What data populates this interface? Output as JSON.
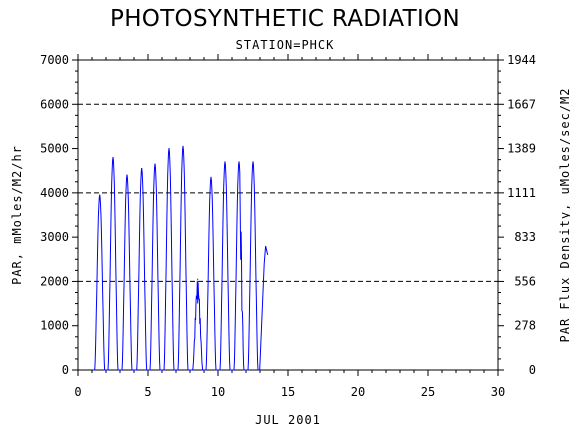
{
  "header": {
    "title": "PHOTOSYNTHETIC RADIATION",
    "subtitle": "STATION=PHCK"
  },
  "chart_data": {
    "type": "line",
    "title": "PHOTOSYNTHETIC RADIATION",
    "subtitle": "STATION=PHCK",
    "xlabel": "JUL 2001",
    "ylabel": "PAR, mMoles/M2/hr",
    "y2label": "PAR Flux Density, uMoles/sec/M2",
    "xlim": [
      0,
      30
    ],
    "ylim": [
      0,
      7000
    ],
    "y2lim": [
      0,
      1944
    ],
    "x_ticks": [
      "0",
      "5",
      "10",
      "15",
      "20",
      "25",
      "30"
    ],
    "y_ticks": [
      "0",
      "1000",
      "2000",
      "3000",
      "4000",
      "5000",
      "6000",
      "7000"
    ],
    "y2_ticks": [
      "0",
      "278",
      "556",
      "833",
      "1111",
      "1389",
      "1667",
      "1944"
    ],
    "grid": "dashed horizontal lines at 2000, 4000, 6000",
    "series_color": "#0000ff",
    "series": [
      {
        "daily_peaks": [
          {
            "x": 1.55,
            "y": 3950
          },
          {
            "x": 2.5,
            "y": 4800
          },
          {
            "x": 3.5,
            "y": 4400
          },
          {
            "x": 4.55,
            "y": 4550
          },
          {
            "x": 5.5,
            "y": 4650
          },
          {
            "x": 6.5,
            "y": 5000
          },
          {
            "x": 7.5,
            "y": 5050
          },
          {
            "x": 8.55,
            "y": 2050
          },
          {
            "x": 9.5,
            "y": 4350
          },
          {
            "x": 10.5,
            "y": 4700
          },
          {
            "x": 11.5,
            "y": 4700
          },
          {
            "x": 12.5,
            "y": 4700
          }
        ],
        "final_segment": [
          {
            "x": 13.3,
            "y": 2400
          },
          {
            "x": 13.4,
            "y": 2800
          },
          {
            "x": 13.55,
            "y": 2600
          }
        ]
      }
    ]
  }
}
